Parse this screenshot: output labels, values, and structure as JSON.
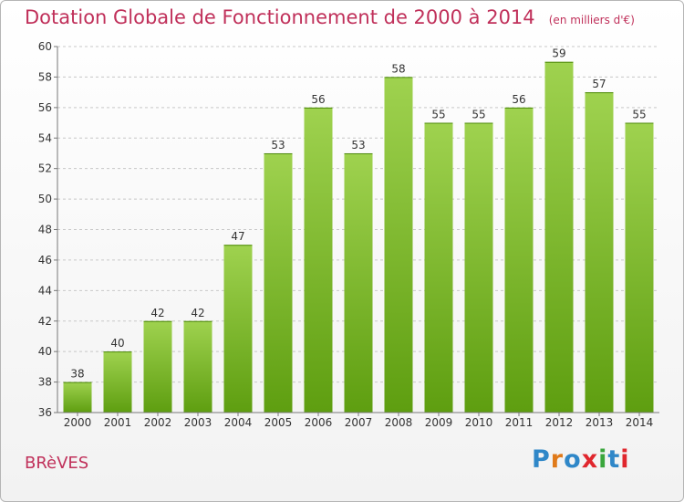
{
  "header": {
    "title": "Dotation Globale de Fonctionnement de 2000 à 2014",
    "subtitle": "(en milliers d'€)"
  },
  "footer": {
    "commune": "BRèVES",
    "logo_text": "Proxiti",
    "logo_colors": [
      "#2f87c8",
      "#e07a1a",
      "#2f87c8",
      "#e0262d",
      "#3aa63c",
      "#2f87c8",
      "#e0262d"
    ]
  },
  "colors": {
    "bar_top": "#9fd24f",
    "bar_bottom": "#5e9e10",
    "grid": "#c8c8c8",
    "title": "#c0305a"
  },
  "chart_data": {
    "type": "bar",
    "categories": [
      "2000",
      "2001",
      "2002",
      "2003",
      "2004",
      "2005",
      "2006",
      "2007",
      "2008",
      "2009",
      "2010",
      "2011",
      "2012",
      "2013",
      "2014"
    ],
    "values": [
      38,
      40,
      42,
      42,
      47,
      53,
      56,
      53,
      58,
      55,
      55,
      56,
      59,
      57,
      55
    ],
    "ylim": [
      36,
      60
    ],
    "yticks": [
      36,
      38,
      40,
      42,
      44,
      46,
      48,
      50,
      52,
      54,
      56,
      58,
      60
    ],
    "grid": true,
    "grid_style": "dashed",
    "data_labels": true
  }
}
